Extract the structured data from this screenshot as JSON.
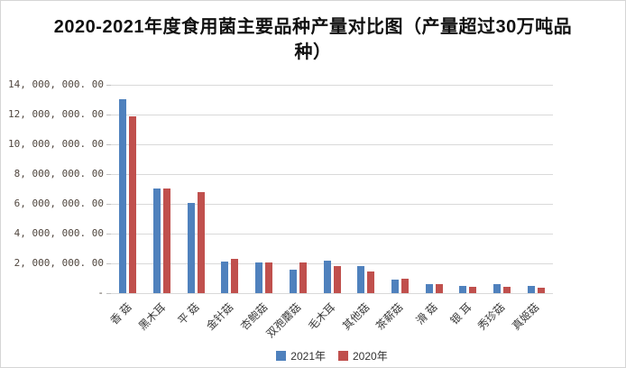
{
  "chart_data": {
    "type": "bar",
    "title": "2020-2021年度食用菌主要品种产量对比图（产量超过30万吨品种）",
    "categories": [
      "香 菇",
      "黑木耳",
      "平 菇",
      "金针菇",
      "杏鲍菇",
      "双孢蘑菇",
      "毛木耳",
      "其他菇",
      "茶薪菇",
      "滑 菇",
      "银 耳",
      "秀珍菇",
      "真姬菇"
    ],
    "series": [
      {
        "name": "2021年",
        "color": "#4f81bd",
        "values": [
          13030000,
          7030000,
          6090000,
          2120000,
          2060000,
          1560000,
          2200000,
          1820000,
          930000,
          630000,
          480000,
          620000,
          500000
        ]
      },
      {
        "name": "2020年",
        "color": "#c0504d",
        "values": [
          11890000,
          7060000,
          6800000,
          2290000,
          2080000,
          2040000,
          1820000,
          1440000,
          950000,
          600000,
          450000,
          400000,
          370000
        ]
      }
    ],
    "xlabel": "",
    "ylabel": "",
    "ylim": [
      0,
      14000000
    ],
    "y_tick_interval": 2000000,
    "y_tick_labels_top_to_bottom": [
      "14, 000, 000. 00",
      "12, 000, 000. 00",
      "10, 000, 000. 00",
      "8, 000, 000. 00",
      "6, 000, 000. 00",
      "4, 000, 000. 00",
      "2, 000, 000. 00",
      "-"
    ],
    "grid": "horizontal",
    "legend_position": "bottom"
  },
  "colors": {
    "series_2021": "#4f81bd",
    "series_2020": "#c0504d",
    "gridline": "#d9d9d9",
    "tick": "#bfbfbf",
    "axis_text": "#50463e",
    "frame_border": "#d6d6d6"
  }
}
